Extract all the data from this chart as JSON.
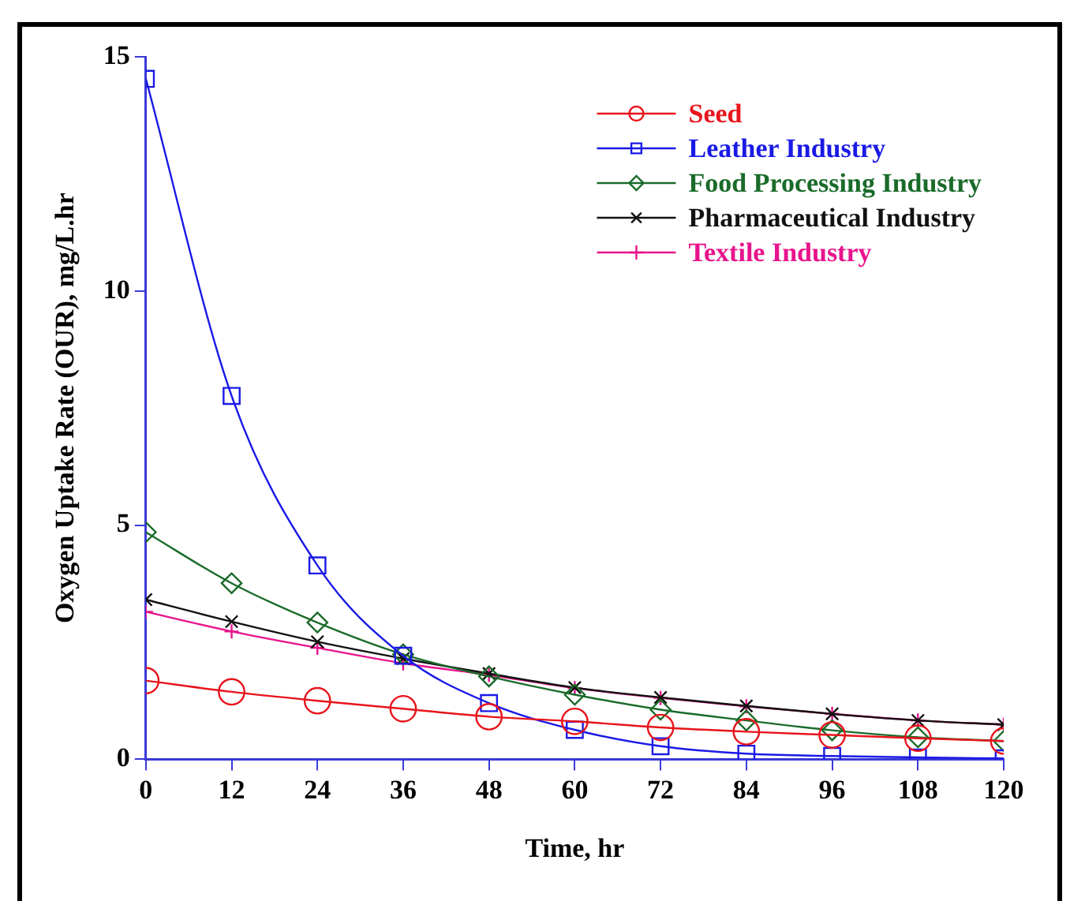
{
  "chart_data": {
    "type": "line",
    "xlabel": "Time, hr",
    "ylabel": "Oxygen Uptake Rate (OUR), mg/L.hr",
    "x": [
      0,
      12,
      24,
      36,
      48,
      60,
      72,
      84,
      96,
      108,
      120
    ],
    "xlim": [
      0,
      120
    ],
    "xticks": [
      0,
      12,
      24,
      36,
      48,
      60,
      72,
      84,
      96,
      108,
      120
    ],
    "ylim": [
      0,
      15
    ],
    "yticks": [
      0,
      5,
      10,
      15
    ],
    "grid": false,
    "legend": "top right",
    "line_style": "solid",
    "series": [
      {
        "name": "Seed",
        "color": "#e8141b",
        "marker": "circle",
        "values": [
          1.68,
          1.44,
          1.25,
          1.08,
          0.91,
          0.81,
          0.68,
          0.59,
          0.52,
          0.45,
          0.39
        ]
      },
      {
        "name": "Leather Industry",
        "color": "#1a1ae6",
        "marker": "square",
        "values": [
          14.53,
          7.76,
          4.14,
          2.21,
          1.2,
          0.63,
          0.28,
          0.12,
          0.07,
          0.04,
          0.02
        ]
      },
      {
        "name": "Food Processing Industry",
        "color": "#1a6b2a",
        "marker": "diamond",
        "values": [
          4.85,
          3.76,
          2.92,
          2.24,
          1.77,
          1.38,
          1.06,
          0.83,
          0.62,
          0.47,
          0.39
        ]
      },
      {
        "name": "Pharmaceutical Industry",
        "color": "#111111",
        "marker": "cross",
        "values": [
          3.41,
          2.94,
          2.51,
          2.15,
          1.83,
          1.53,
          1.32,
          1.14,
          0.97,
          0.83,
          0.74
        ]
      },
      {
        "name": "Textile Industry",
        "color": "#e8148c",
        "marker": "plus",
        "values": [
          3.15,
          2.73,
          2.38,
          2.05,
          1.8,
          1.52,
          1.31,
          1.13,
          0.97,
          0.83,
          0.74
        ]
      }
    ]
  }
}
